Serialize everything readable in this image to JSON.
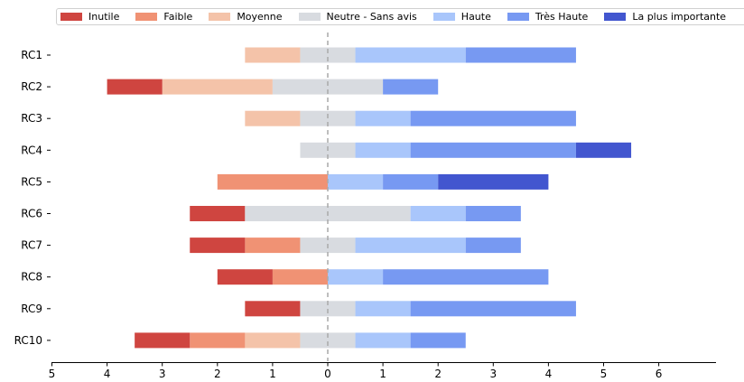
{
  "chart_data": {
    "type": "bar",
    "orientation": "horizontal-diverging",
    "categories": [
      "RC1",
      "RC2",
      "RC3",
      "RC4",
      "RC5",
      "RC6",
      "RC7",
      "RC8",
      "RC9",
      "RC10"
    ],
    "series": [
      {
        "name": "Inutile",
        "color": "#cf4540",
        "values": [
          0,
          1,
          0,
          0,
          0,
          1,
          1,
          1,
          1,
          1
        ]
      },
      {
        "name": "Faible",
        "color": "#f09274",
        "values": [
          0,
          0,
          0,
          0,
          2,
          0,
          1,
          1,
          0,
          1
        ]
      },
      {
        "name": "Moyenne",
        "color": "#f4c3a9",
        "values": [
          1,
          2,
          1,
          0,
          0,
          0,
          0,
          0,
          0,
          1
        ]
      },
      {
        "name": "Neutre - Sans avis",
        "color": "#d8dbe0",
        "values": [
          1,
          2,
          1,
          1,
          0,
          3,
          1,
          0,
          1,
          1
        ]
      },
      {
        "name": "Haute",
        "color": "#a9c6fb",
        "values": [
          2,
          0,
          1,
          1,
          1,
          1,
          2,
          1,
          1,
          1
        ]
      },
      {
        "name": "Très Haute",
        "color": "#7799f2",
        "values": [
          2,
          1,
          3,
          3,
          1,
          1,
          1,
          3,
          3,
          1
        ]
      },
      {
        "name": "La plus importante",
        "color": "#4256cf",
        "values": [
          0,
          0,
          0,
          1,
          2,
          0,
          0,
          0,
          0,
          0
        ]
      }
    ],
    "xticks": [
      "5",
      "4",
      "3",
      "2",
      "1",
      "0",
      "1",
      "2",
      "3",
      "4",
      "5",
      "6"
    ],
    "xlim": [
      -5,
      7
    ],
    "center_line": 0,
    "legend_position": "top"
  }
}
